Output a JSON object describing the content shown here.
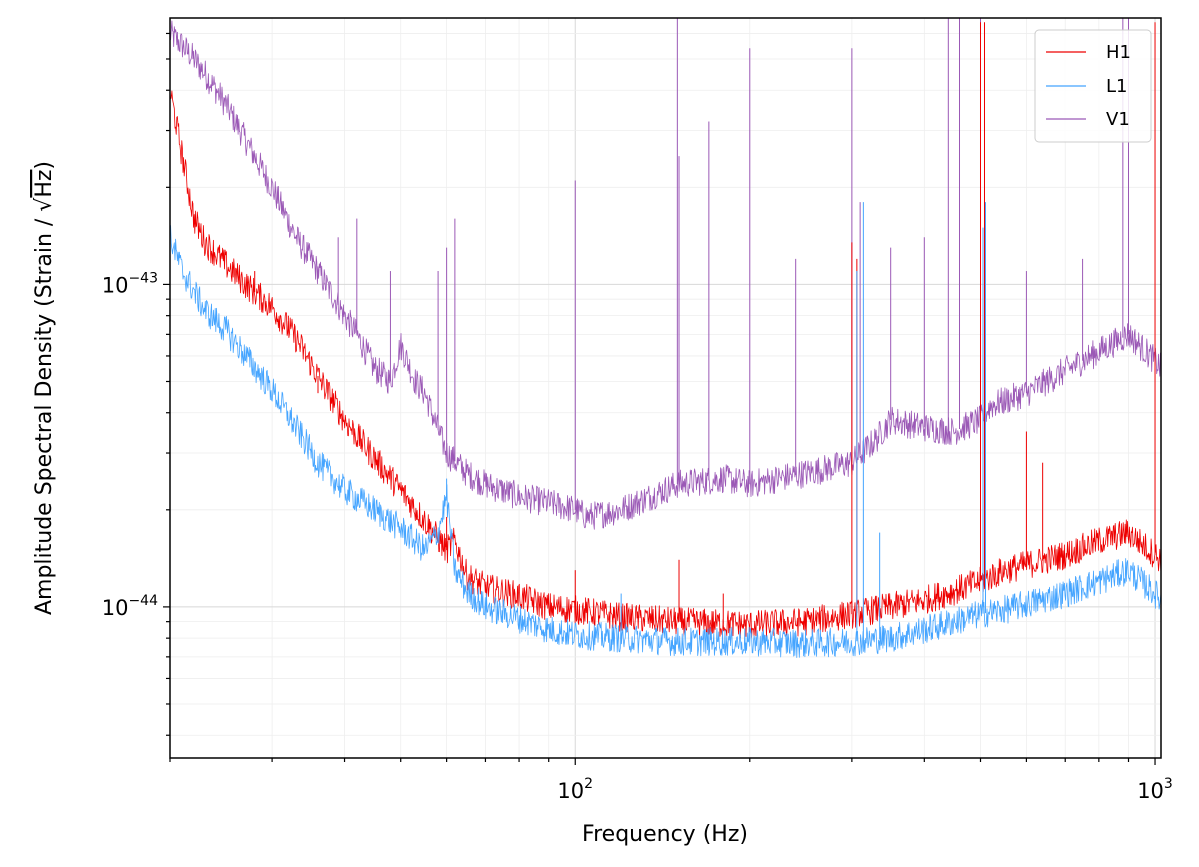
{
  "chart_data": {
    "type": "line",
    "title": "",
    "xlabel": "Frequency (Hz)",
    "ylabel_main": "Amplitude Spectral Density (Strain / ",
    "ylabel_sqrt": "Hz",
    "ylabel_tail": ")",
    "x_scale": "log",
    "y_scale": "log",
    "xlim": [
      20,
      1024
    ],
    "ylim": [
      3.4e-45,
      6.7e-43
    ],
    "x_ticks": [
      {
        "value": 100,
        "base": "10",
        "exp": "2"
      },
      {
        "value": 1000,
        "base": "10",
        "exp": "3"
      }
    ],
    "y_ticks": [
      {
        "value": 1e-44,
        "base": "10",
        "exp": "−44"
      },
      {
        "value": 1e-43,
        "base": "10",
        "exp": "−43"
      }
    ],
    "grid": true,
    "legend_position": "top-right",
    "series": [
      {
        "name": "H1",
        "color": "#ee0000",
        "x": [
          20,
          21,
          22,
          23,
          25,
          27,
          30,
          33,
          36,
          40,
          45,
          50,
          55,
          60,
          62,
          65,
          70,
          80,
          90,
          100,
          120,
          150,
          200,
          250,
          300,
          350,
          400,
          450,
          500,
          550,
          600,
          700,
          800,
          900,
          1000,
          1024
        ],
        "y": [
          4e-43,
          2.5e-43,
          1.6e-43,
          1.35e-43,
          1.15e-43,
          1e-43,
          8.5e-44,
          6.8e-44,
          5.2e-44,
          3.8e-44,
          2.9e-44,
          2.3e-44,
          1.85e-44,
          1.5e-44,
          1.6e-44,
          1.25e-44,
          1.15e-44,
          1.08e-44,
          1e-44,
          9.8e-45,
          9.3e-45,
          9e-45,
          8.8e-45,
          9e-45,
          9.5e-45,
          1e-44,
          1.05e-44,
          1.12e-44,
          1.2e-44,
          1.3e-44,
          1.35e-44,
          1.45e-44,
          1.6e-44,
          1.7e-44,
          1.45e-44,
          1.4e-44
        ],
        "peaks": [
          {
            "x": 28,
            "y": 1.1e-43
          },
          {
            "x": 32,
            "y": 8e-44
          },
          {
            "x": 36,
            "y": 4.6e-44
          },
          {
            "x": 41,
            "y": 3.6e-44
          },
          {
            "x": 60,
            "y": 1.9e-44
          },
          {
            "x": 100,
            "y": 1.3e-44
          },
          {
            "x": 151,
            "y": 1.4e-44
          },
          {
            "x": 180,
            "y": 1.1e-44
          },
          {
            "x": 300,
            "y": 1.35e-43
          },
          {
            "x": 306,
            "y": 1.2e-43
          },
          {
            "x": 500,
            "y": 6.5e-43
          },
          {
            "x": 508,
            "y": 6.5e-43
          },
          {
            "x": 600,
            "y": 3.5e-44
          },
          {
            "x": 640,
            "y": 2.8e-44
          },
          {
            "x": 1000,
            "y": 6.5e-43
          }
        ]
      },
      {
        "name": "L1",
        "color": "#44a4ff",
        "x": [
          20,
          21,
          22,
          23,
          25,
          27,
          30,
          33,
          36,
          40,
          45,
          50,
          55,
          58,
          60,
          62,
          65,
          70,
          80,
          90,
          100,
          120,
          150,
          200,
          250,
          300,
          350,
          400,
          450,
          500,
          550,
          600,
          700,
          800,
          900,
          1000,
          1024
        ],
        "y": [
          1.4e-43,
          1.1e-43,
          9.5e-44,
          8.3e-44,
          7.2e-44,
          6e-44,
          4.7e-44,
          3.6e-44,
          2.8e-44,
          2.3e-44,
          2e-44,
          1.75e-44,
          1.5e-44,
          1.7e-44,
          2.2e-44,
          1.3e-44,
          1.12e-44,
          1e-44,
          9.2e-45,
          8.5e-45,
          8.2e-45,
          8e-45,
          7.8e-45,
          7.8e-45,
          7.7e-45,
          7.8e-45,
          8e-45,
          8.5e-45,
          9e-45,
          9.5e-45,
          9.8e-45,
          1.02e-44,
          1.1e-44,
          1.2e-44,
          1.3e-44,
          1.1e-44,
          1.05e-44
        ],
        "peaks": [
          {
            "x": 60,
            "y": 2.5e-44
          },
          {
            "x": 120,
            "y": 1.1e-44
          },
          {
            "x": 306,
            "y": 1.1e-43
          },
          {
            "x": 314,
            "y": 1.8e-43
          },
          {
            "x": 335,
            "y": 1.7e-44
          },
          {
            "x": 505,
            "y": 1.5e-43
          },
          {
            "x": 510,
            "y": 1.8e-43
          }
        ]
      },
      {
        "name": "V1",
        "color": "#9b59b6",
        "x": [
          20,
          21,
          22,
          23,
          25,
          27,
          30,
          33,
          36,
          40,
          42,
          45,
          48,
          50,
          53,
          55,
          60,
          65,
          70,
          80,
          90,
          100,
          105,
          120,
          150,
          180,
          200,
          250,
          300,
          330,
          350,
          400,
          450,
          500,
          520,
          600,
          700,
          800,
          900,
          1000,
          1024
        ],
        "y": [
          6e-43,
          5.5e-43,
          5e-43,
          4.5e-43,
          3.6e-43,
          2.8e-43,
          2e-43,
          1.4e-43,
          1.1e-43,
          8e-44,
          7e-44,
          5.5e-44,
          5e-44,
          6.5e-44,
          5e-44,
          4.6e-44,
          3e-44,
          2.6e-44,
          2.4e-44,
          2.2e-44,
          2.1e-44,
          2e-44,
          1.9e-44,
          2e-44,
          2.4e-44,
          2.5e-44,
          2.4e-44,
          2.6e-44,
          2.8e-44,
          3.3e-44,
          3.8e-44,
          3.6e-44,
          3.5e-44,
          3.8e-44,
          4.2e-44,
          4.6e-44,
          5.4e-44,
          6.2e-44,
          7e-44,
          5.8e-44,
          5.5e-44
        ],
        "peaks": [
          {
            "x": 37,
            "y": 1e-43
          },
          {
            "x": 39,
            "y": 1.4e-43
          },
          {
            "x": 42,
            "y": 1.6e-43
          },
          {
            "x": 48,
            "y": 1.1e-43
          },
          {
            "x": 58,
            "y": 1.1e-43
          },
          {
            "x": 60,
            "y": 1.3e-43
          },
          {
            "x": 62,
            "y": 1.6e-43
          },
          {
            "x": 100,
            "y": 2.1e-43
          },
          {
            "x": 150,
            "y": 6.7e-43
          },
          {
            "x": 151,
            "y": 2.5e-43
          },
          {
            "x": 170,
            "y": 3.2e-43
          },
          {
            "x": 200,
            "y": 5.4e-43
          },
          {
            "x": 240,
            "y": 1.2e-43
          },
          {
            "x": 300,
            "y": 5.4e-43
          },
          {
            "x": 310,
            "y": 1.8e-43
          },
          {
            "x": 350,
            "y": 1.3e-43
          },
          {
            "x": 400,
            "y": 1.4e-43
          },
          {
            "x": 440,
            "y": 6.7e-43
          },
          {
            "x": 460,
            "y": 6.7e-43
          },
          {
            "x": 500,
            "y": 6.7e-43
          },
          {
            "x": 600,
            "y": 1.1e-43
          },
          {
            "x": 750,
            "y": 1.2e-43
          },
          {
            "x": 880,
            "y": 6.7e-43
          },
          {
            "x": 900,
            "y": 6.7e-43
          }
        ]
      }
    ]
  }
}
